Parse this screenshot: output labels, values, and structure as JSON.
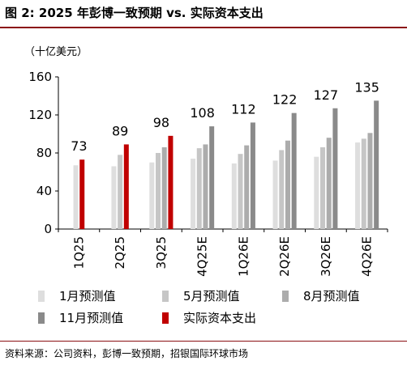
{
  "title": "图 2: 2025 年彭博一致预期 vs. 实际资本支出",
  "unit_label": "（十亿美元）",
  "source": "资料来源：公司资料，彭博一致预期，招银国际环球市场",
  "colors": {
    "title_rule": "#8b0f12",
    "jan": "#dedede",
    "may": "#c6c6c6",
    "aug": "#acacac",
    "nov": "#8a8a8a",
    "actual": "#c00000"
  },
  "chart_data": {
    "type": "bar",
    "categories": [
      "1Q25",
      "2Q25",
      "3Q25",
      "4Q25E",
      "1Q26E",
      "2Q26E",
      "3Q26E",
      "4Q26E"
    ],
    "ylim": [
      0,
      160
    ],
    "yticks": [
      "0",
      "40",
      "80",
      "120",
      "160"
    ],
    "grid": false,
    "legend_position": "bottom",
    "series": [
      {
        "name": "1月预测值",
        "color": "#dedede",
        "values": [
          67,
          66,
          70,
          74,
          69,
          72,
          76,
          91
        ]
      },
      {
        "name": "5月预测值",
        "color": "#c6c6c6",
        "values": [
          null,
          78,
          80,
          85,
          79,
          83,
          86,
          95
        ]
      },
      {
        "name": "8月预测值",
        "color": "#acacac",
        "values": [
          null,
          null,
          86,
          89,
          88,
          93,
          96,
          101
        ]
      },
      {
        "name": "11月预测值",
        "color": "#8a8a8a",
        "values": [
          null,
          null,
          null,
          108,
          112,
          122,
          127,
          135
        ]
      },
      {
        "name": "实际资本支出",
        "color": "#c00000",
        "values": [
          73,
          89,
          98,
          null,
          null,
          null,
          null,
          null
        ]
      }
    ],
    "data_labels": [
      "73",
      "89",
      "98",
      "108",
      "112",
      "122",
      "127",
      "135"
    ]
  }
}
